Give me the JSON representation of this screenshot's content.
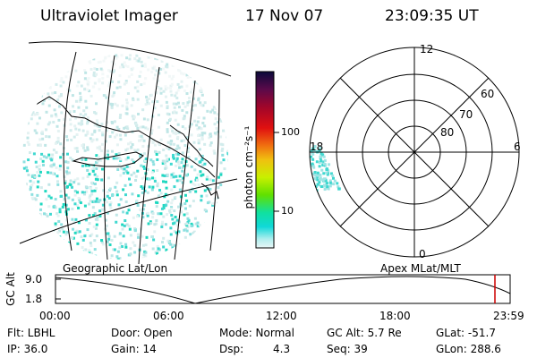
{
  "header": {
    "title": "Ultraviolet Imager",
    "date": "17 Nov 07",
    "time": "23:09:35 UT"
  },
  "colorbar": {
    "label": "photon cm⁻²s⁻¹",
    "ticks": [
      "100",
      "10"
    ],
    "colors": [
      "#0b0a3a",
      "#5a0a4a",
      "#a0052a",
      "#e01010",
      "#f07010",
      "#f0c010",
      "#c8f000",
      "#60e000",
      "#10e0a0",
      "#10d8d8",
      "#b0eeee",
      "#e8f6f6"
    ]
  },
  "left_panel": {
    "label": "Geographic Lat/Lon"
  },
  "right_panel": {
    "label": "Apex MLat/MLT",
    "mlt_labels": {
      "top": "12",
      "right": "6",
      "bottom": "0",
      "left": "18"
    },
    "mlat_labels": [
      "60",
      "70",
      "80"
    ]
  },
  "altitude_plot": {
    "ylabel": "GC Alt",
    "yticks": [
      "9.0",
      "1.8"
    ],
    "xticks": [
      "00:00",
      "06:00",
      "12:00",
      "18:00",
      "23:59"
    ],
    "cursor_color": "#cc0000"
  },
  "info": {
    "flt": "Flt: LBHL",
    "ip": "IP: 36.0",
    "door": "Door: Open",
    "gain": "Gain: 14",
    "mode": "Mode: Normal",
    "dsp_label": "Dsp:",
    "dsp_value": "4.3",
    "gcalt": "GC Alt: 5.7 Re",
    "seq": "Seq: 39",
    "glat": "GLat: -51.7",
    "glon": "GLon: 288.6"
  }
}
